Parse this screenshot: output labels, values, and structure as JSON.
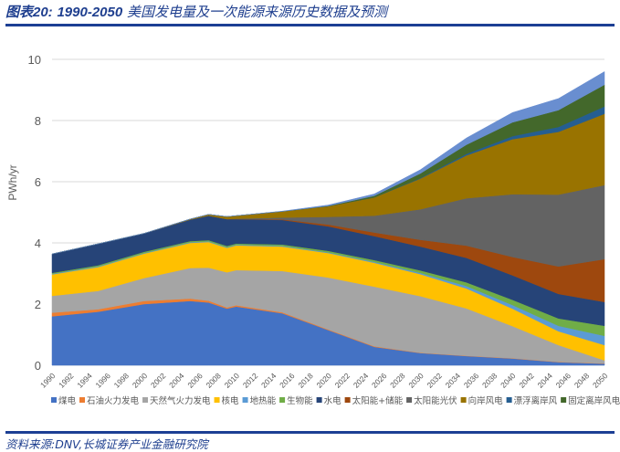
{
  "header": {
    "title_prefix": "图表20:",
    "title_range": "1990-2050",
    "title_text": "美国发电量及一次能源来源历史数据及预测"
  },
  "footer": {
    "source": "资料来源:DNV,长城证券产业金融研究院"
  },
  "chart_data": {
    "type": "area",
    "stacked": true,
    "title": "1990-2050 美国发电量及一次能源来源历史数据及预测",
    "xlabel": "",
    "ylabel": "PWh/yr",
    "ylim": [
      0,
      10
    ],
    "yticks": [
      0,
      2,
      4,
      6,
      8,
      10
    ],
    "grid": true,
    "legend_position": "bottom",
    "x": [
      1990,
      1995,
      2000,
      2005,
      2007,
      2009,
      2010,
      2015,
      2020,
      2025,
      2030,
      2035,
      2040,
      2045,
      2050
    ],
    "xtick_labels": [
      "1990",
      "1992",
      "1994",
      "1996",
      "1998",
      "2000",
      "2002",
      "2004",
      "2006",
      "2008",
      "2010",
      "2012",
      "2014",
      "2016",
      "2018",
      "2020",
      "2022",
      "2024",
      "2026",
      "2028",
      "2030",
      "2032",
      "2034",
      "2036",
      "2038",
      "2040",
      "2042",
      "2044",
      "2046",
      "2048",
      "2050"
    ],
    "series": [
      {
        "name": "煤电",
        "color": "#4472c4",
        "values": [
          1.6,
          1.75,
          2.0,
          2.1,
          2.05,
          1.85,
          1.92,
          1.7,
          1.15,
          0.6,
          0.4,
          0.3,
          0.22,
          0.1,
          0.05
        ]
      },
      {
        "name": "石油火力发电",
        "color": "#ed7d31",
        "values": [
          0.12,
          0.08,
          0.1,
          0.08,
          0.06,
          0.04,
          0.04,
          0.03,
          0.02,
          0.02,
          0.01,
          0.01,
          0.01,
          0.01,
          0.01
        ]
      },
      {
        "name": "天然气火力发电",
        "color": "#a5a5a5",
        "values": [
          0.55,
          0.6,
          0.75,
          1.0,
          1.08,
          1.15,
          1.15,
          1.35,
          1.7,
          1.95,
          1.85,
          1.55,
          1.05,
          0.55,
          0.1
        ]
      },
      {
        "name": "核电",
        "color": "#ffc000",
        "values": [
          0.7,
          0.78,
          0.8,
          0.82,
          0.84,
          0.8,
          0.81,
          0.8,
          0.8,
          0.78,
          0.72,
          0.65,
          0.57,
          0.45,
          0.5
        ]
      },
      {
        "name": "地热能",
        "color": "#5b9bd5",
        "values": [
          0.02,
          0.02,
          0.02,
          0.02,
          0.02,
          0.02,
          0.02,
          0.02,
          0.02,
          0.03,
          0.04,
          0.08,
          0.12,
          0.18,
          0.3
        ]
      },
      {
        "name": "生物能",
        "color": "#70ad47",
        "values": [
          0.03,
          0.04,
          0.04,
          0.04,
          0.04,
          0.04,
          0.04,
          0.05,
          0.05,
          0.06,
          0.08,
          0.12,
          0.17,
          0.24,
          0.33
        ]
      },
      {
        "name": "水电",
        "color": "#264478",
        "values": [
          0.62,
          0.7,
          0.6,
          0.7,
          0.8,
          0.88,
          0.8,
          0.8,
          0.8,
          0.78,
          0.78,
          0.8,
          0.8,
          0.8,
          0.78
        ]
      },
      {
        "name": "太阳能+储能",
        "color": "#9e480e",
        "values": [
          0.0,
          0.0,
          0.0,
          0.0,
          0.0,
          0.0,
          0.0,
          0.02,
          0.06,
          0.12,
          0.22,
          0.4,
          0.6,
          0.9,
          1.4
        ]
      },
      {
        "name": "太阳能光伏",
        "color": "#636363",
        "values": [
          0.0,
          0.0,
          0.0,
          0.0,
          0.0,
          0.0,
          0.01,
          0.06,
          0.25,
          0.55,
          1.0,
          1.55,
          2.05,
          2.35,
          2.42
        ]
      },
      {
        "name": "向岸风电",
        "color": "#997300",
        "values": [
          0.0,
          0.0,
          0.0,
          0.02,
          0.04,
          0.08,
          0.1,
          0.2,
          0.35,
          0.6,
          1.0,
          1.4,
          1.8,
          2.05,
          2.33
        ]
      },
      {
        "name": "漂浮离岸风",
        "color": "#255e91",
        "values": [
          0.0,
          0.0,
          0.0,
          0.0,
          0.0,
          0.0,
          0.0,
          0.0,
          0.0,
          0.0,
          0.02,
          0.05,
          0.1,
          0.16,
          0.24
        ]
      },
      {
        "name": "固定离岸风电",
        "color": "#43682b",
        "values": [
          0.0,
          0.0,
          0.0,
          0.0,
          0.0,
          0.0,
          0.0,
          0.0,
          0.01,
          0.05,
          0.15,
          0.3,
          0.45,
          0.55,
          0.71
        ]
      },
      {
        "name": "储能",
        "color": "#698ed0",
        "values": [
          0.0,
          0.0,
          0.0,
          0.0,
          0.0,
          0.0,
          0.0,
          0.01,
          0.03,
          0.06,
          0.12,
          0.22,
          0.32,
          0.38,
          0.43
        ]
      }
    ]
  }
}
